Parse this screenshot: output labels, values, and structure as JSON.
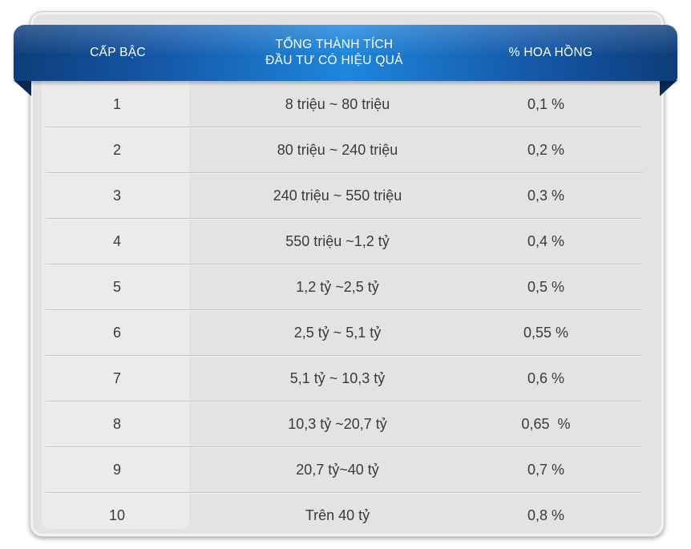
{
  "table": {
    "headers": {
      "level": "CẤP BẬC",
      "performance_line1": "TỔNG THÀNH TÍCH",
      "performance_line2": "ĐẦU TƯ CÓ HIỆU QUẢ",
      "commission": "% HOA HỒNG"
    },
    "rows": [
      {
        "level": "1",
        "performance": "8 triệu ~ 80 triệu",
        "commission": "0,1 %"
      },
      {
        "level": "2",
        "performance": "80 triệu ~ 240 triệu",
        "commission": "0,2 %"
      },
      {
        "level": "3",
        "performance": "240 triệu ~ 550 triệu",
        "commission": "0,3 %"
      },
      {
        "level": "4",
        "performance": "550 triệu ~1,2 tỷ",
        "commission": "0,4 %"
      },
      {
        "level": "5",
        "performance": "1,2 tỷ ~2,5 tỷ",
        "commission": "0,5 %"
      },
      {
        "level": "6",
        "performance": "2,5 tỷ ~ 5,1 tỷ",
        "commission": "0,55 %"
      },
      {
        "level": "7",
        "performance": "5,1 tỷ ~ 10,3 tỷ",
        "commission": "0,6 %"
      },
      {
        "level": "8",
        "performance": "10,3 tỷ ~20,7 tỷ",
        "commission": "0,65  %"
      },
      {
        "level": "9",
        "performance": "20,7 tỷ~40 tỷ",
        "commission": "0,7 %"
      },
      {
        "level": "10",
        "performance": "Trên 40 tỷ",
        "commission": "0,8 %"
      }
    ]
  },
  "colors": {
    "header_dark": "#0d3d7a",
    "header_light": "#1e86dc",
    "card_bg": "#e3e3e3",
    "text": "#3a3a3a"
  }
}
